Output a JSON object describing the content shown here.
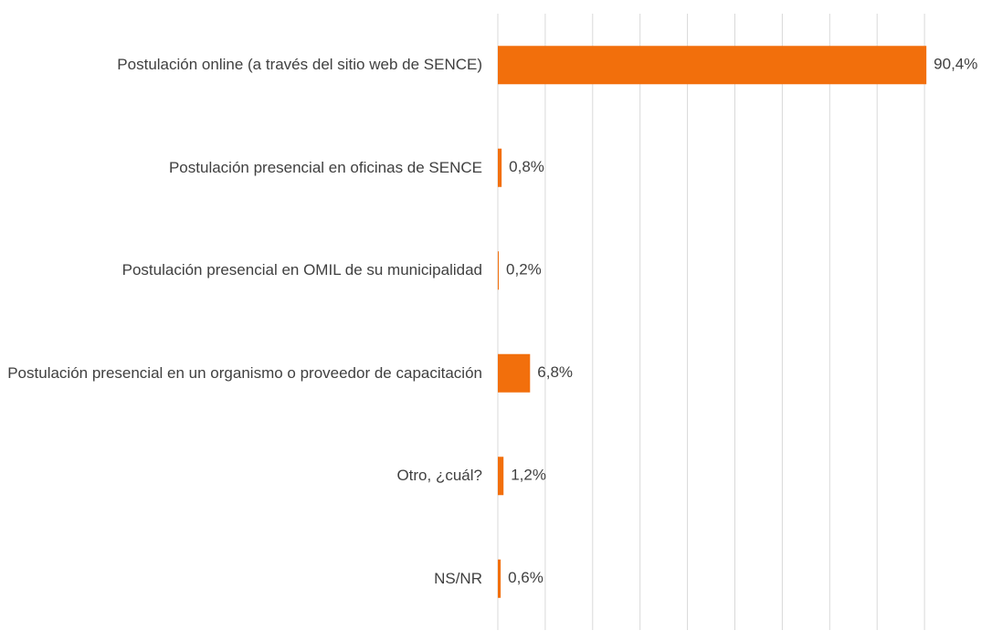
{
  "chart_data": {
    "type": "bar",
    "orientation": "horizontal",
    "categories": [
      "Postulación online (a través del sitio web de SENCE)",
      "Postulación presencial en oficinas de SENCE",
      "Postulación presencial en OMIL de su municipalidad",
      "Postulación presencial en un organismo o proveedor de capacitación",
      "Otro, ¿cuál?",
      "NS/NR"
    ],
    "values": [
      90.4,
      0.8,
      0.2,
      6.8,
      1.2,
      0.6
    ],
    "value_labels": [
      "90,4%",
      "0,8%",
      "0,2%",
      "6,8%",
      "1,2%",
      "0,6%"
    ],
    "color": "#f26f0c",
    "xlim": [
      0,
      100
    ],
    "xticks": [
      0,
      10,
      20,
      30,
      40,
      50,
      60,
      70,
      80,
      90
    ],
    "grid": true
  }
}
